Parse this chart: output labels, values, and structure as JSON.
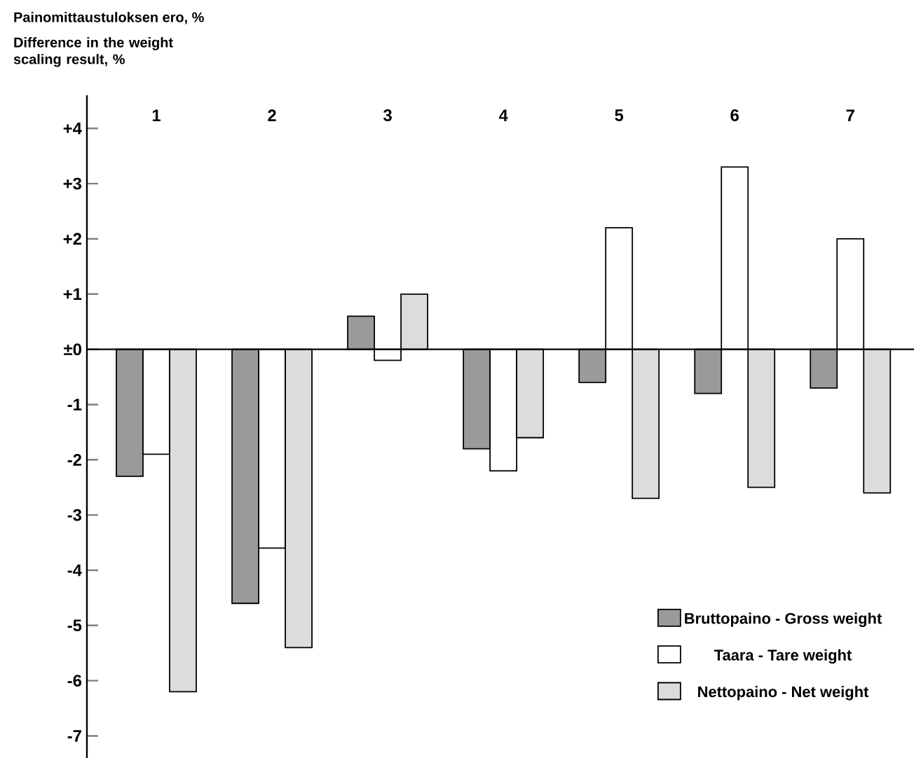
{
  "chart_data": {
    "type": "bar",
    "title": "Painomittaustuloksen ero, %",
    "subtitle": "Difference in the weight scaling result, %",
    "categories": [
      "1",
      "2",
      "3",
      "4",
      "5",
      "6",
      "7"
    ],
    "series": [
      {
        "name": "Bruttopaino - Gross weight",
        "color": "#9a9a9a",
        "values": [
          -2.3,
          -4.6,
          0.6,
          -1.8,
          -0.6,
          -0.8,
          -0.7
        ]
      },
      {
        "name": "Taara - Tare weight",
        "color": "#ffffff",
        "values": [
          -1.9,
          -3.6,
          -0.2,
          -2.2,
          2.2,
          3.3,
          2.0
        ]
      },
      {
        "name": "Nettopaino - Net weight",
        "color": "#dcdcdc",
        "values": [
          -6.2,
          -5.4,
          1.0,
          -1.6,
          -2.7,
          -2.5,
          -2.6
        ]
      }
    ],
    "ylim": [
      -7.4,
      4.6
    ],
    "yticks": [
      {
        "value": 4,
        "label": "+4"
      },
      {
        "value": 3,
        "label": "+3"
      },
      {
        "value": 2,
        "label": "+2"
      },
      {
        "value": 1,
        "label": "+1"
      },
      {
        "value": 0,
        "label": "±0"
      },
      -1,
      -2,
      -3,
      -4,
      -5,
      -6,
      -7
    ],
    "legend": "bottom right"
  }
}
